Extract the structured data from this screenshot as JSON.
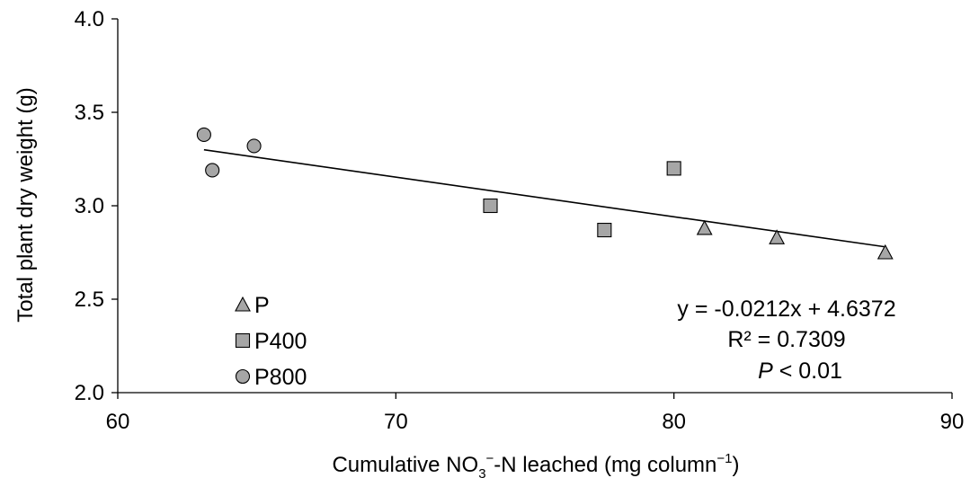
{
  "chart_data": {
    "type": "scatter",
    "xlabel": {
      "pre": "Cumulative NO",
      "sub": "3",
      "sup": "−",
      "post": "-N leached (mg column",
      "sup2": "−1",
      "end": ")"
    },
    "ylabel": "Total plant dry weight (g)",
    "xlim": [
      60,
      90
    ],
    "ylim": [
      2.0,
      4.0
    ],
    "xticks": [
      "60",
      "70",
      "80",
      "90"
    ],
    "yticks": [
      "2.0",
      "2.5",
      "3.0",
      "3.5",
      "4.0"
    ],
    "series": [
      {
        "name": "P",
        "marker": "triangle",
        "color": "#a6a6a6",
        "points": [
          [
            81.1,
            2.88
          ],
          [
            83.7,
            2.83
          ],
          [
            87.6,
            2.75
          ]
        ]
      },
      {
        "name": "P400",
        "marker": "square",
        "color": "#a6a6a6",
        "points": [
          [
            73.4,
            3.0
          ],
          [
            77.5,
            2.87
          ],
          [
            80.0,
            3.2
          ]
        ]
      },
      {
        "name": "P800",
        "marker": "circle",
        "color": "#a6a6a6",
        "points": [
          [
            63.1,
            3.38
          ],
          [
            63.4,
            3.19
          ],
          [
            64.9,
            3.32
          ]
        ]
      }
    ],
    "trendline": {
      "slope": -0.0212,
      "intercept": 4.6372,
      "x_range": [
        63.1,
        87.6
      ]
    },
    "annotations": {
      "equation": "y = -0.0212x + 4.6372",
      "r2": "R² = 0.7309",
      "p_italic": "P",
      "p_rest": " < 0.01"
    },
    "legend_position": "bottom-left",
    "grid": false
  }
}
